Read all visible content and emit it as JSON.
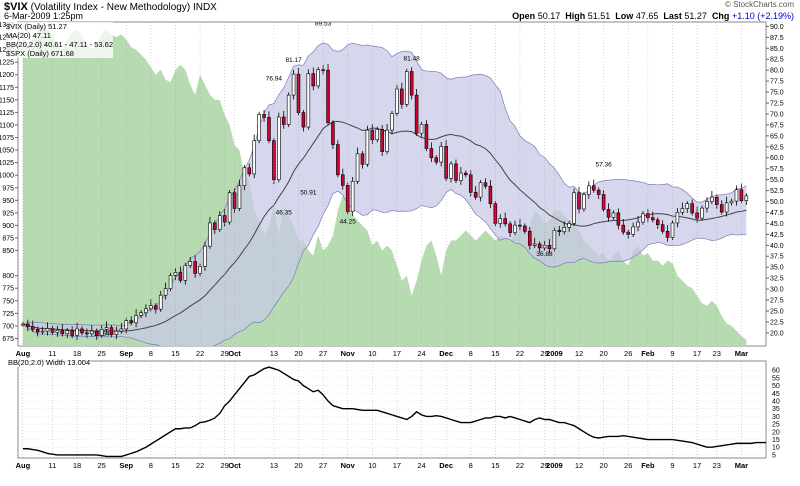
{
  "header": {
    "symbol": "$VIX",
    "name": "(Volatility Index - New Methodology)",
    "exchange": "INDX",
    "date": "6-Mar-2009 1:25pm",
    "open_label": "Open",
    "open": "50.17",
    "high_label": "High",
    "high": "51.51",
    "low_label": "Low",
    "low": "47.65",
    "last_label": "Last",
    "last": "51.27",
    "chg_label": "Chg",
    "chg": "+1.10 (+2.19%)",
    "brand": "© StockCharts.com"
  },
  "legend": {
    "vix": "$VIX (Daily) 51.27",
    "ma": "MA(20) 47.11",
    "bb": "BB(20,2.0) 40.61 - 47.11 - 53.62",
    "spx": "$SPX (Daily) 671.68"
  },
  "lower_panel": {
    "title": "BB(20,2.0) Width 13.004"
  },
  "colors": {
    "spx_fill": "#b6dbb0",
    "band_fill": "#c8c9e6",
    "band_line": "#7a7cb8",
    "up_candle": "#ffffff",
    "down_candle": "#cc0033",
    "ma_line": "#444444"
  },
  "chart_data": [
    {
      "type": "candlestick",
      "title": "$VIX (Volatility Index - New Methodology)",
      "x_months": [
        {
          "label": "Aug",
          "x": 0
        },
        {
          "label": "11",
          "x": 6
        },
        {
          "label": "18",
          "x": 11
        },
        {
          "label": "25",
          "x": 16
        },
        {
          "label": "Sep",
          "x": 21
        },
        {
          "label": "8",
          "x": 26
        },
        {
          "label": "15",
          "x": 31
        },
        {
          "label": "22",
          "x": 36
        },
        {
          "label": "29",
          "x": 41
        },
        {
          "label": "Oct",
          "x": 43
        },
        {
          "label": "13",
          "x": 51
        },
        {
          "label": "20",
          "x": 56
        },
        {
          "label": "27",
          "x": 61
        },
        {
          "label": "Nov",
          "x": 66
        },
        {
          "label": "10",
          "x": 71
        },
        {
          "label": "17",
          "x": 76
        },
        {
          "label": "24",
          "x": 81
        },
        {
          "label": "Dec",
          "x": 86
        },
        {
          "label": "8",
          "x": 91
        },
        {
          "label": "15",
          "x": 96
        },
        {
          "label": "22",
          "x": 101
        },
        {
          "label": "29",
          "x": 106
        },
        {
          "label": "2009",
          "x": 108
        },
        {
          "label": "12",
          "x": 113
        },
        {
          "label": "20",
          "x": 118
        },
        {
          "label": "26",
          "x": 123
        },
        {
          "label": "Feb",
          "x": 127
        },
        {
          "label": "9",
          "x": 132
        },
        {
          "label": "17",
          "x": 137
        },
        {
          "label": "23",
          "x": 141
        },
        {
          "label": "Mar",
          "x": 146
        }
      ],
      "xlim": [
        -1,
        151
      ],
      "y_right_ticks": [
        20,
        22.5,
        25,
        27.5,
        30,
        32.5,
        35,
        37.5,
        40,
        42.5,
        45,
        47.5,
        50,
        52.5,
        55,
        57.5,
        60,
        62.5,
        65,
        67.5,
        70,
        72.5,
        75,
        77.5,
        80,
        82.5,
        85,
        87.5,
        90
      ],
      "y_right_lim": [
        17,
        91
      ],
      "y_left_ticks": [
        675,
        700,
        725,
        750,
        775,
        800,
        850,
        875,
        900,
        925,
        950,
        975,
        1000,
        1025,
        1050,
        1075,
        1100,
        1125,
        1150,
        1175,
        1200,
        1225,
        1250,
        1275,
        1300
      ],
      "y_left_lim": [
        660,
        1305
      ],
      "vix_closes": [
        22.0,
        21.4,
        20.8,
        20.2,
        20.4,
        21.0,
        20.1,
        20.6,
        19.8,
        20.5,
        19.4,
        20.9,
        20.0,
        19.8,
        20.4,
        19.4,
        20.8,
        21.2,
        19.6,
        20.4,
        20.9,
        22.8,
        22.3,
        24.0,
        24.6,
        25.5,
        26.2,
        25.4,
        28.6,
        30.1,
        33.1,
        33.8,
        32.0,
        35.4,
        36.3,
        33.6,
        35.2,
        39.8,
        45.1,
        43.6,
        46.8,
        45.3,
        52.0,
        48.4,
        53.6,
        57.7,
        56.3,
        63.9,
        69.9,
        69.2,
        63.9,
        55.0,
        69.3,
        67.6,
        74.3,
        79.1,
        70.3,
        67.0,
        79.2,
        76.4,
        80.1,
        80.0,
        68.0,
        63.0,
        56.1,
        53.7,
        47.7,
        54.6,
        60.9,
        58.5,
        66.3,
        64.1,
        66.5,
        61.4,
        66.3,
        70.1,
        75.7,
        72.2,
        79.7,
        74.3,
        65.6,
        67.6,
        62.1,
        60.0,
        59.0,
        62.6,
        55.3,
        58.6,
        54.8,
        56.5,
        56.1,
        52.1,
        51.0,
        54.3,
        53.5,
        49.5,
        45.0,
        46.1,
        44.9,
        42.9,
        44.6,
        44.4,
        43.2,
        40.0,
        40.3,
        39.4,
        40.0,
        39.2,
        43.4,
        43.1,
        44.1,
        45.0,
        52.0,
        48.3,
        51.6,
        53.6,
        52.6,
        51.6,
        48.2,
        46.4,
        47.4,
        44.6,
        43.0,
        42.5,
        44.2,
        45.3,
        47.2,
        46.3,
        45.8,
        44.7,
        43.2,
        41.8,
        45.1,
        47.5,
        48.4,
        49.5,
        47.4,
        46.2,
        48.5,
        50.0,
        51.0,
        49.3,
        47.6,
        49.7,
        50.1,
        52.7,
        50.2,
        51.3
      ],
      "annotations": [
        {
          "text": "18.64",
          "x": 16,
          "y": 18.64
        },
        {
          "text": "76.94",
          "x": 51,
          "y": 76.94
        },
        {
          "text": "81.17",
          "x": 55,
          "y": 81.17
        },
        {
          "text": "89.53",
          "x": 61,
          "y": 89.53
        },
        {
          "text": "46.35",
          "x": 53,
          "y": 46.35
        },
        {
          "text": "50.91",
          "x": 58,
          "y": 50.91
        },
        {
          "text": "44.25",
          "x": 66,
          "y": 44.25
        },
        {
          "text": "81.48",
          "x": 79,
          "y": 81.48
        },
        {
          "text": "57.36",
          "x": 118,
          "y": 57.36
        },
        {
          "text": "36.88",
          "x": 106,
          "y": 36.88
        }
      ],
      "spx_values": [
        1284,
        1260,
        1270,
        1290,
        1300,
        1290,
        1280,
        1260,
        1250,
        1270,
        1285,
        1290,
        1275,
        1265,
        1250,
        1260,
        1280,
        1290,
        1280,
        1275,
        1280,
        1270,
        1255,
        1250,
        1240,
        1230,
        1215,
        1200,
        1210,
        1190,
        1185,
        1210,
        1220,
        1210,
        1180,
        1160,
        1200,
        1180,
        1160,
        1150,
        1150,
        1120,
        1100,
        1060,
        1050,
        1000,
        990,
        930,
        910,
        880,
        900,
        940,
        880,
        940,
        920,
        900,
        870,
        870,
        850,
        840,
        880,
        850,
        860,
        880,
        930,
        960,
        950,
        920,
        910,
        900,
        890,
        860,
        870,
        850,
        860,
        850,
        820,
        790,
        800,
        760,
        790,
        830,
        860,
        870,
        840,
        800,
        850,
        870,
        870,
        880,
        890,
        880,
        870,
        880,
        890,
        880,
        870,
        880,
        875,
        870,
        880,
        890,
        890,
        900,
        930,
        920,
        905,
        910,
        930,
        930,
        920,
        910,
        905,
        890,
        870,
        860,
        850,
        840,
        845,
        830,
        840,
        850,
        830,
        820,
        850,
        860,
        840,
        845,
        830,
        830,
        820,
        830,
        825,
        800,
        790,
        780,
        775,
        760,
        745,
        740,
        750,
        740,
        720,
        705,
        700,
        690,
        680,
        672
      ],
      "lower_series_title": "BB(20,2.0) Width 13.004",
      "bb_width": [
        9,
        9,
        8.5,
        8,
        7,
        6,
        5.5,
        5,
        5,
        5,
        5,
        5,
        5,
        5,
        5,
        5,
        4.5,
        4,
        4,
        4,
        4,
        5,
        6,
        7,
        8.5,
        10,
        12,
        14,
        16,
        18,
        20,
        22,
        22,
        22.5,
        22.5,
        24,
        26,
        26.5,
        27.5,
        29,
        32,
        37,
        40,
        44,
        48,
        52,
        56,
        57,
        59,
        61,
        62,
        61,
        60,
        58,
        56,
        54,
        53,
        50,
        48,
        46,
        47,
        44,
        40,
        37,
        36,
        35,
        35,
        35,
        34.5,
        34,
        34,
        34,
        34,
        33,
        32,
        31,
        30,
        29,
        28,
        30,
        33,
        31,
        30,
        30,
        30.5,
        30,
        29,
        28,
        27,
        26,
        26,
        26,
        27,
        28,
        29,
        29,
        30,
        30,
        29,
        30,
        29,
        28,
        27,
        26,
        28,
        29,
        28,
        28,
        27,
        26,
        26,
        25,
        24,
        22,
        20,
        18,
        16.5,
        16,
        16.5,
        17,
        17,
        17,
        17.5,
        17,
        16.5,
        16,
        15.5,
        15,
        15,
        15,
        15,
        15,
        15,
        14.5,
        14,
        13.5,
        13,
        12,
        11,
        10,
        10,
        10.5,
        11,
        11.5,
        12,
        12.5,
        12.5,
        12.5,
        12.5,
        13,
        13,
        13
      ],
      "y_lower_ticks": [
        5,
        10,
        15,
        20,
        25,
        30,
        35,
        40,
        45,
        50,
        55,
        60
      ],
      "y_lower_lim": [
        3,
        66
      ]
    }
  ]
}
